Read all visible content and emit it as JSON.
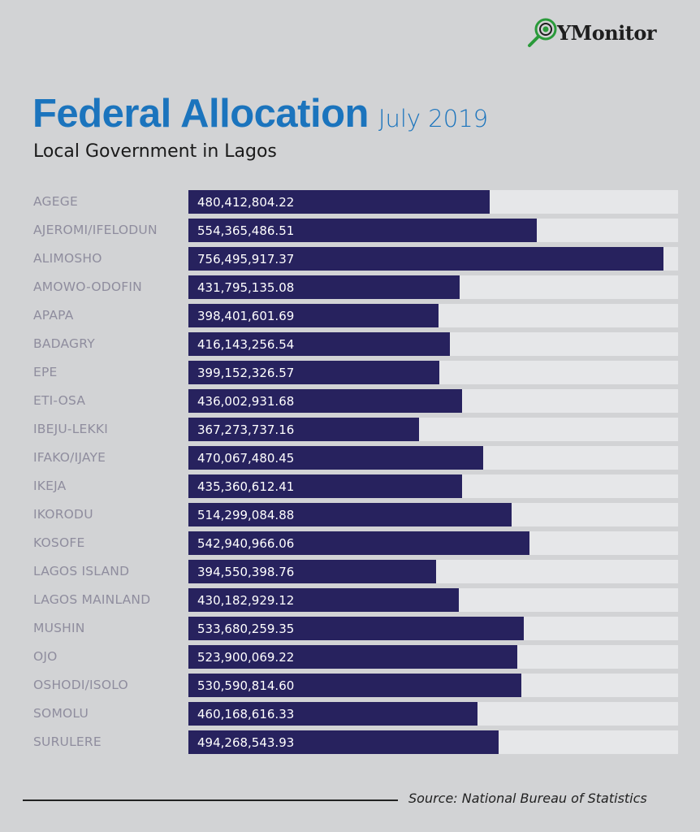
{
  "brand": {
    "logo_text": "YMonitor",
    "logo_icon": "magnifier-eye-icon"
  },
  "header": {
    "title": "Federal Allocation",
    "title_suffix": "July 2019",
    "subtitle": "Local Government in Lagos"
  },
  "footer": {
    "source": "Source: National Bureau of Statistics"
  },
  "colors": {
    "bar": "#27225e",
    "track": "#e6e7e9",
    "title": "#1b74bd",
    "label": "#8f8d9e",
    "background": "#d2d3d5"
  },
  "chart_data": {
    "type": "bar",
    "orientation": "horizontal",
    "title": "Federal Allocation July 2019",
    "subtitle": "Local Government in Lagos",
    "xlabel": "",
    "ylabel": "",
    "xlim": [
      0,
      780000000
    ],
    "grid": false,
    "legend": "none",
    "categories": [
      "AGEGE",
      "AJEROMI/IFELODUN",
      "ALIMOSHO",
      "AMOWO-ODOFIN",
      "APAPA",
      "BADAGRY",
      "EPE",
      "ETI-OSA",
      "IBEJU-LEKKI",
      "IFAKO/IJAYE",
      "IKEJA",
      "IKORODU",
      "KOSOFE",
      "LAGOS ISLAND",
      "LAGOS MAINLAND",
      "MUSHIN",
      "OJO",
      "OSHODI/ISOLO",
      "SOMOLU",
      "SURULERE"
    ],
    "values": [
      480412804.22,
      554365486.51,
      756495917.37,
      431795135.08,
      398401601.69,
      416143256.54,
      399152326.57,
      436002931.68,
      367273737.16,
      470067480.45,
      435360612.41,
      514299084.88,
      542940966.06,
      394550398.76,
      430182929.12,
      533680259.35,
      523900069.22,
      530590814.6,
      460168616.33,
      494268543.93
    ],
    "labels": [
      "480,412,804.22",
      "554,365,486.51",
      "756,495,917.37",
      "431,795,135.08",
      "398,401,601.69",
      "416,143,256.54",
      "399,152,326.57",
      "436,002,931.68",
      "367,273,737.16",
      "470,067,480.45",
      "435,360,612.41",
      "514,299,084.88",
      "542,940,966.06",
      "394,550,398.76",
      "430,182,929.12",
      "533,680,259.35",
      "523,900,069.22",
      "530,590,814.60",
      "460,168,616.33",
      "494,268,543.93"
    ],
    "source": "Source: National Bureau of Statistics"
  }
}
